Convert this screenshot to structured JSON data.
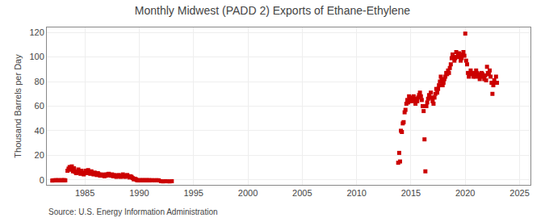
{
  "chart_data": {
    "type": "scatter",
    "title": "Monthly Midwest (PADD 2) Exports of Ethane-Ethylene",
    "ylabel": "Thousand Barrels per Day",
    "annotations": [
      "Source: U.S. Energy Information Administration"
    ],
    "color": "#cc0000",
    "marker": "square",
    "grid": true,
    "xlim": [
      1981.5,
      2026
    ],
    "ylim": [
      -4,
      124
    ],
    "xticks": [
      1985,
      1990,
      1995,
      2000,
      2005,
      2010,
      2015,
      2020,
      2025
    ],
    "yticks": [
      0,
      20,
      40,
      60,
      80,
      100,
      120
    ],
    "x": [
      1982.0,
      1982.1,
      1982.2,
      1982.3,
      1982.4,
      1982.5,
      1982.6,
      1982.7,
      1982.8,
      1982.9,
      1983.0,
      1983.1,
      1983.2,
      1983.4,
      1983.5,
      1983.6,
      1983.7,
      1983.8,
      1983.9,
      1984.0,
      1984.1,
      1984.2,
      1984.3,
      1984.4,
      1984.5,
      1984.6,
      1984.7,
      1984.8,
      1984.9,
      1985.0,
      1985.1,
      1985.2,
      1985.3,
      1985.4,
      1985.5,
      1985.6,
      1985.7,
      1985.8,
      1985.9,
      1986.0,
      1986.1,
      1986.2,
      1986.3,
      1986.4,
      1986.5,
      1986.6,
      1986.7,
      1986.8,
      1986.9,
      1987.0,
      1987.1,
      1987.2,
      1987.3,
      1987.4,
      1987.5,
      1987.6,
      1987.7,
      1987.8,
      1987.9,
      1988.0,
      1988.1,
      1988.2,
      1988.3,
      1988.4,
      1988.5,
      1988.6,
      1988.7,
      1988.8,
      1988.9,
      1989.0,
      1989.1,
      1989.2,
      1989.3,
      1989.4,
      1989.5,
      1989.6,
      1989.7,
      1989.8,
      1989.9,
      1990.0,
      1990.1,
      1990.2,
      1990.3,
      1990.4,
      1990.5,
      1990.6,
      1990.7,
      1990.8,
      1990.9,
      1991.0,
      1991.2,
      1991.4,
      1991.6,
      1991.8,
      1992.0,
      1992.2,
      1992.4,
      1992.6,
      1992.8,
      1993.0,
      2013.83,
      2013.92,
      2014.0,
      2014.08,
      2014.17,
      2014.25,
      2014.33,
      2014.42,
      2014.5,
      2014.58,
      2014.67,
      2014.75,
      2014.83,
      2014.92,
      2015.0,
      2015.08,
      2015.17,
      2015.25,
      2015.33,
      2015.42,
      2015.5,
      2015.58,
      2015.67,
      2015.75,
      2015.83,
      2015.92,
      2016.0,
      2016.08,
      2016.17,
      2016.25,
      2016.33,
      2016.42,
      2016.5,
      2016.58,
      2016.67,
      2016.75,
      2016.83,
      2016.92,
      2017.0,
      2017.08,
      2017.17,
      2017.25,
      2017.33,
      2017.42,
      2017.5,
      2017.58,
      2017.67,
      2017.75,
      2017.83,
      2017.92,
      2018.0,
      2018.08,
      2018.17,
      2018.25,
      2018.33,
      2018.42,
      2018.5,
      2018.58,
      2018.67,
      2018.75,
      2018.83,
      2018.92,
      2019.0,
      2019.08,
      2019.17,
      2019.25,
      2019.33,
      2019.42,
      2019.5,
      2019.58,
      2019.67,
      2019.75,
      2019.83,
      2019.92,
      2020.0,
      2020.08,
      2020.17,
      2020.25,
      2020.33,
      2020.42,
      2020.5,
      2020.58,
      2020.67,
      2020.75,
      2020.83,
      2020.92,
      2021.0,
      2021.08,
      2021.17,
      2021.25,
      2021.33,
      2021.42,
      2021.5,
      2021.58,
      2021.67,
      2021.75,
      2021.83,
      2021.92,
      2022.0,
      2022.08,
      2022.17,
      2022.25,
      2022.33,
      2022.42,
      2022.5,
      2022.58,
      2022.67,
      2022.75,
      2022.83,
      2022.92
    ],
    "values": [
      -0.5,
      -0.3,
      -0.4,
      -0.2,
      -0.3,
      -0.3,
      -0.2,
      -0.4,
      -0.3,
      -0.2,
      -0.3,
      -0.2,
      -0.3,
      7.5,
      9.2,
      10.5,
      8.3,
      11.0,
      7.0,
      9.5,
      6.5,
      5.5,
      7.0,
      8.5,
      6.0,
      5.0,
      7.5,
      5.5,
      4.5,
      6.0,
      7.5,
      5.5,
      8.0,
      6.5,
      5.0,
      7.0,
      5.5,
      4.5,
      6.0,
      5.0,
      4.0,
      5.5,
      4.5,
      3.5,
      4.5,
      3.5,
      4.0,
      3.0,
      4.5,
      3.5,
      4.5,
      5.0,
      4.0,
      3.5,
      4.5,
      3.0,
      4.0,
      3.5,
      2.5,
      3.0,
      4.0,
      3.5,
      2.5,
      3.5,
      4.5,
      3.0,
      2.5,
      3.5,
      4.0,
      3.0,
      2.0,
      3.0,
      2.5,
      1.5,
      0.5,
      1.0,
      0.5,
      -0.2,
      -0.3,
      -0.3,
      -0.2,
      -0.3,
      -0.2,
      -0.3,
      -0.2,
      -0.3,
      -0.2,
      -0.3,
      -0.2,
      -0.3,
      -0.2,
      -0.3,
      -0.2,
      -0.3,
      -1.0,
      -1.2,
      -1.0,
      -1.1,
      -1.2,
      -1.0,
      14.0,
      22.0,
      15.0,
      40.0,
      39.0,
      46.0,
      47.0,
      55.0,
      57.0,
      62.0,
      65.0,
      63.0,
      68.0,
      66.0,
      67.0,
      64.0,
      66.0,
      68.0,
      65.0,
      62.0,
      66.0,
      64.0,
      67.0,
      69.0,
      71.0,
      68.0,
      65.0,
      60.0,
      56.0,
      33.0,
      7.0,
      60.0,
      63.0,
      66.0,
      69.0,
      67.0,
      71.0,
      67.0,
      64.0,
      62.0,
      67.0,
      70.0,
      74.0,
      71.0,
      74.0,
      77.0,
      80.0,
      84.0,
      81.0,
      77.0,
      79.0,
      82.0,
      84.0,
      87.0,
      86.0,
      89.0,
      87.0,
      91.0,
      94.0,
      99.0,
      102.0,
      100.0,
      97.0,
      99.0,
      104.0,
      100.0,
      101.0,
      103.0,
      100.0,
      97.0,
      99.0,
      102.0,
      104.0,
      101.0,
      119.0,
      97.0,
      94.0,
      87.0,
      84.0,
      87.0,
      89.0,
      87.0,
      86.0,
      84.0,
      87.0,
      84.0,
      89.0,
      87.0,
      86.0,
      84.0,
      82.0,
      84.0,
      87.0,
      86.0,
      84.0,
      82.0,
      85.0,
      81.0,
      92.0,
      87.0,
      86.0,
      89.0,
      84.0,
      79.0,
      70.0,
      77.0,
      81.0,
      79.0,
      84.0,
      79.0
    ]
  }
}
